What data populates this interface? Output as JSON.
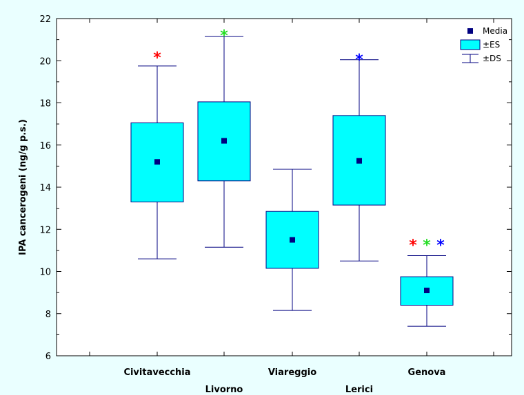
{
  "chart_data": {
    "type": "box",
    "ylabel": "IPA cancerogeni (ng/g p.s.)",
    "ylim": [
      6,
      22
    ],
    "yticks": [
      6,
      8,
      10,
      12,
      14,
      16,
      18,
      20,
      22
    ],
    "categories": [
      "Civitavecchia",
      "Livorno",
      "Viareggio",
      "Lerici",
      "Genova"
    ],
    "boxes": [
      {
        "category": "Civitavecchia",
        "mean": 15.2,
        "es_low": 13.3,
        "es_high": 17.05,
        "ds_low": 10.6,
        "ds_high": 19.75
      },
      {
        "category": "Livorno",
        "mean": 16.2,
        "es_low": 14.3,
        "es_high": 18.05,
        "ds_low": 11.15,
        "ds_high": 21.15
      },
      {
        "category": "Viareggio",
        "mean": 11.5,
        "es_low": 10.15,
        "es_high": 12.85,
        "ds_low": 8.15,
        "ds_high": 14.85
      },
      {
        "category": "Lerici",
        "mean": 15.25,
        "es_low": 13.15,
        "es_high": 17.4,
        "ds_low": 10.5,
        "ds_high": 20.05
      },
      {
        "category": "Genova",
        "mean": 9.1,
        "es_low": 8.4,
        "es_high": 9.75,
        "ds_low": 7.4,
        "ds_high": 10.75
      }
    ],
    "annotations": [
      {
        "category": "Civitavecchia",
        "marks": [
          {
            "text": "*",
            "color": "#ff0000"
          }
        ]
      },
      {
        "category": "Livorno",
        "marks": [
          {
            "text": "*",
            "color": "#22dd22"
          }
        ]
      },
      {
        "category": "Lerici",
        "marks": [
          {
            "text": "*",
            "color": "#0000ff"
          }
        ]
      },
      {
        "category": "Genova",
        "marks": [
          {
            "text": "*",
            "color": "#ff0000"
          },
          {
            "text": "*",
            "color": "#22dd22"
          },
          {
            "text": "*",
            "color": "#0000ff"
          }
        ]
      }
    ],
    "legend": {
      "position": "top-right",
      "items": [
        {
          "label": "Media",
          "symbol": "square-marker"
        },
        {
          "label": "±ES",
          "symbol": "box"
        },
        {
          "label": "±DS",
          "symbol": "whisker"
        }
      ]
    },
    "colors": {
      "background": "#eaffff",
      "plot_background": "#ffffff",
      "box_fill": "#00ffff",
      "stroke": "#000080",
      "mean_marker": "#000080"
    }
  }
}
